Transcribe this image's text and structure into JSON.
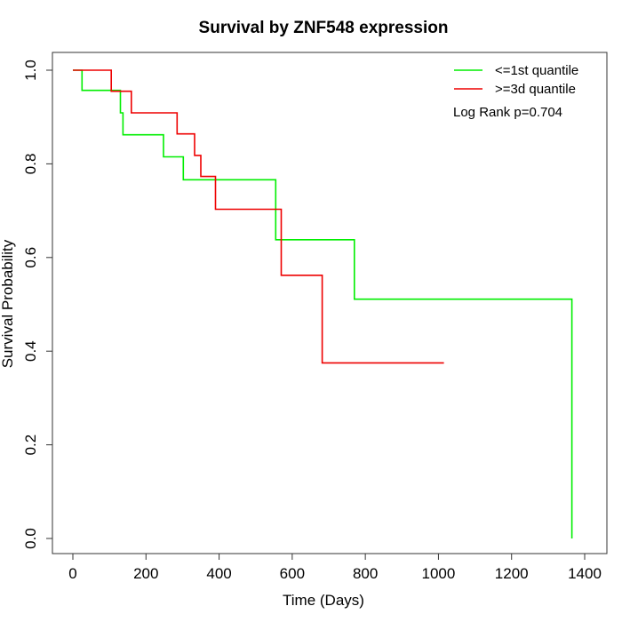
{
  "chart_data": {
    "type": "line",
    "title": "Survival by ZNF548 expression",
    "xlabel": "Time (Days)",
    "ylabel": "Survival Probability",
    "xlim": [
      0,
      1400
    ],
    "ylim": [
      0,
      1
    ],
    "x_ticks": [
      "0",
      "200",
      "400",
      "600",
      "800",
      "1000",
      "1200",
      "1400"
    ],
    "y_ticks": [
      "0.0",
      "0.2",
      "0.4",
      "0.6",
      "0.8",
      "1.0"
    ],
    "legend_position": "top-right",
    "annotation": "Log Rank p=0.704",
    "grid": false,
    "step": true,
    "series": [
      {
        "name": "<=1st quantile",
        "color": "#00ee00",
        "x": [
          0,
          25,
          130,
          137,
          248,
          302,
          555,
          770,
          1365,
          1365
        ],
        "y": [
          1.0,
          0.957,
          0.909,
          0.862,
          0.815,
          0.766,
          0.638,
          0.511,
          0.511,
          0.0
        ]
      },
      {
        "name": ">=3d quantile",
        "color": "#ee0000",
        "x": [
          0,
          105,
          160,
          285,
          333,
          350,
          390,
          570,
          682,
          1015
        ],
        "y": [
          1.0,
          0.955,
          0.909,
          0.864,
          0.818,
          0.773,
          0.703,
          0.562,
          0.375,
          0.375
        ]
      }
    ]
  }
}
